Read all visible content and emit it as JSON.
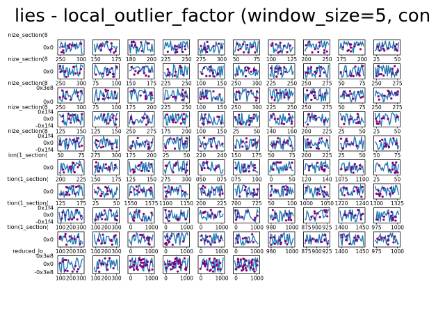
{
  "figure": {
    "title": "lies - local_outlier_factor (window_size=5, con"
  },
  "palette": {
    "series": "#1f77b4",
    "anomaly": "#800080",
    "axis": "#000000",
    "background": "#ffffff"
  },
  "chart_data": {
    "type": "line",
    "layout": "grid of small multiples, 10 columns, last row 6 panels",
    "title": "lies - local_outlier_factor (window_size=5, con",
    "series": [
      {
        "name": "",
        "role": "signal"
      },
      {
        "name": "",
        "role": "anomaly points (scatter)"
      }
    ],
    "row_label_texts": [
      "nize_section(8",
      "nize_section(8",
      "nize_section(8",
      "nize_section(8",
      "nize_section(8",
      "ion(1_section(",
      "tion(1_section(",
      "tion(1_section(",
      "tion(1_section(",
      "reduced_lo"
    ],
    "ytick_texts": [
      [
        "0x0"
      ],
      [
        "0x0"
      ],
      [
        "0x3e8",
        "0x0"
      ],
      [
        "0x1f4",
        "0x0",
        "-0x1f4"
      ],
      [
        "0x1f4",
        "0x0",
        "-0x1f4"
      ],
      [
        "0x0"
      ],
      [
        "0x0"
      ],
      [
        "0x1f4",
        "0x0",
        "-0x1f4"
      ],
      [
        "0x0"
      ],
      [
        "0x0"
      ],
      [
        "0x3e8",
        "0x0",
        "-0x3e8"
      ]
    ],
    "panel_xticks": [
      [
        [
          "250",
          "300"
        ],
        [
          "150",
          "175"
        ],
        [
          "180",
          "200"
        ],
        [
          "225",
          "250"
        ],
        [
          "275",
          "300"
        ],
        [
          "50",
          "75"
        ],
        [
          "100",
          "125"
        ],
        [
          "200",
          "250"
        ],
        [
          "175",
          "200"
        ],
        [
          "25",
          "50"
        ]
      ],
      [
        [
          "250",
          "300"
        ],
        [
          "75",
          "100"
        ],
        [
          "150",
          "175"
        ],
        [
          "225",
          "250"
        ],
        [
          "100",
          "150"
        ],
        [
          "250",
          "300"
        ],
        [
          "225",
          "250"
        ],
        [
          "250",
          "275"
        ],
        [
          "50",
          "75"
        ],
        [
          "250",
          "275"
        ]
      ],
      [
        [
          "250",
          "300"
        ],
        [
          "75",
          "100"
        ],
        [
          "175",
          "200"
        ],
        [
          "225",
          "250"
        ],
        [
          "100",
          "150"
        ],
        [
          "250",
          "300"
        ],
        [
          "225",
          "250"
        ],
        [
          "250",
          "275"
        ],
        [
          "50",
          "75"
        ],
        [
          "250",
          "275"
        ]
      ],
      [
        [
          "125",
          "150"
        ],
        [
          "125",
          "150"
        ],
        [
          "250",
          "275"
        ],
        [
          "175",
          "200"
        ],
        [
          "100",
          "150"
        ],
        [
          "25",
          "50"
        ],
        [
          "140",
          "160"
        ],
        [
          "200",
          "225"
        ],
        [
          "25",
          "50"
        ],
        [
          "25",
          "50"
        ]
      ],
      [
        [
          "50",
          "75"
        ],
        [
          "275",
          "300"
        ],
        [
          "175",
          "200"
        ],
        [
          "25",
          "50"
        ],
        [
          "220",
          "240"
        ],
        [
          "150",
          "175"
        ],
        [
          "50",
          "75"
        ],
        [
          "200",
          "225"
        ],
        [
          "25",
          "50"
        ],
        [
          "50",
          "75"
        ]
      ],
      [
        [
          "200",
          "225"
        ],
        [
          "150",
          "175"
        ],
        [
          "125",
          "150"
        ],
        [
          "275",
          "300"
        ],
        [
          "050",
          "075"
        ],
        [
          "075",
          "100"
        ],
        [
          "0",
          "50"
        ],
        [
          "120",
          "140"
        ],
        [
          "1075",
          "1100"
        ],
        [
          "25",
          "50"
        ]
      ],
      [
        [
          "125",
          "175"
        ],
        [
          "25",
          "50"
        ],
        [
          "1550",
          "1575"
        ],
        [
          "1100",
          "1150"
        ],
        [
          "200",
          "225"
        ],
        [
          "700",
          "725"
        ],
        [
          "50",
          "100"
        ],
        [
          "1000",
          "1050"
        ],
        [
          "1220",
          "1240"
        ],
        [
          "1300",
          "1325"
        ]
      ],
      [
        [
          "100",
          "200",
          "300"
        ],
        [
          "100",
          "200",
          "300"
        ],
        [
          "0",
          "1000"
        ],
        [
          "0",
          "1000"
        ],
        [
          "0",
          "1000"
        ],
        [
          "0",
          "1000"
        ],
        [
          "980",
          "1000"
        ],
        [
          "875",
          "900",
          "925"
        ],
        [
          "1400",
          "1450"
        ],
        [
          "975",
          "1000"
        ]
      ]
    ],
    "bottom_row_label": "reduced_lo",
    "bottom_row_ytick_texts": [
      "0x3e8",
      "0x0",
      "-0x3e8"
    ],
    "bottom_row_xticks": [
      [
        "100",
        "200",
        "300"
      ],
      [
        "100",
        "200",
        "300"
      ],
      [
        "0",
        "1000"
      ],
      [
        "0",
        "1000"
      ],
      [
        "0",
        "1000"
      ],
      [
        "0",
        "1000"
      ]
    ],
    "grid": false,
    "legend": "none"
  }
}
